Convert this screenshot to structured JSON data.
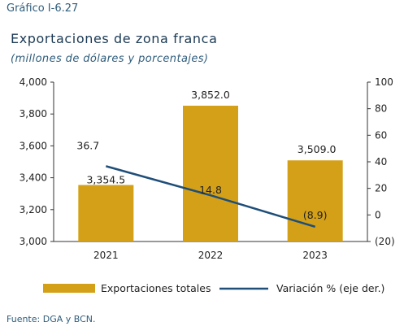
{
  "header": {
    "label": "Gráfico I-6.27",
    "title": "Exportaciones de zona franca",
    "subtitle": "(millones de dólares y porcentajes)"
  },
  "footer": {
    "source": "Fuente: DGA y BCN."
  },
  "chart_data": {
    "type": "bar",
    "categories": [
      "2021",
      "2022",
      "2023"
    ],
    "series": [
      {
        "name": "Exportaciones totales",
        "type": "bar",
        "axis": "left",
        "values": [
          3354.5,
          3852.0,
          3509.0
        ],
        "labels": [
          "3,354.5",
          "3,852.0",
          "3,509.0"
        ],
        "color": "#d4a017"
      },
      {
        "name": "Variación % (eje der.)",
        "type": "line",
        "axis": "right",
        "values": [
          36.7,
          14.8,
          -8.9
        ],
        "labels": [
          "36.7",
          "14.8",
          "(8.9)"
        ],
        "color": "#1f4e79"
      }
    ],
    "y_left": {
      "min": 3000,
      "max": 4000,
      "ticks": [
        3000,
        3200,
        3400,
        3600,
        3800,
        4000
      ],
      "tick_labels": [
        "3,000",
        "3,200",
        "3,400",
        "3,600",
        "3,800",
        "4,000"
      ]
    },
    "y_right": {
      "min": -20,
      "max": 100,
      "ticks": [
        -20,
        0,
        20,
        40,
        60,
        80,
        100
      ],
      "tick_labels": [
        "(20)",
        "0",
        "20",
        "40",
        "60",
        "80",
        "100"
      ]
    },
    "grid": false,
    "legend_position": "bottom"
  }
}
